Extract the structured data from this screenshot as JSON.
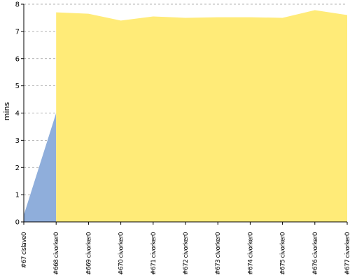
{
  "chart_data": {
    "type": "area",
    "categories": [
      "#67 cislave0",
      "#668 civorker0",
      "#669 civorker0",
      "#670 civorker0",
      "#671 civorker0",
      "#672 civorker0",
      "#673 civorker0",
      "#674 civorker0",
      "#675 civorker0",
      "#676 civorker0",
      "#677 civorker0"
    ],
    "series": [
      {
        "color": "#8faedb",
        "values": [
          0.25,
          4.0,
          null,
          null,
          null,
          null,
          null,
          null,
          null,
          null,
          null
        ]
      },
      {
        "color": "#ffeb78",
        "values": [
          null,
          7.7,
          7.65,
          7.4,
          7.55,
          7.5,
          7.52,
          7.52,
          7.5,
          7.78,
          7.6
        ]
      }
    ],
    "ylabel": "mins",
    "ylim": [
      0,
      8
    ],
    "yticks": [
      0,
      1,
      2,
      3,
      4,
      5,
      6,
      7,
      8
    ],
    "grid": true,
    "legend": "none"
  }
}
